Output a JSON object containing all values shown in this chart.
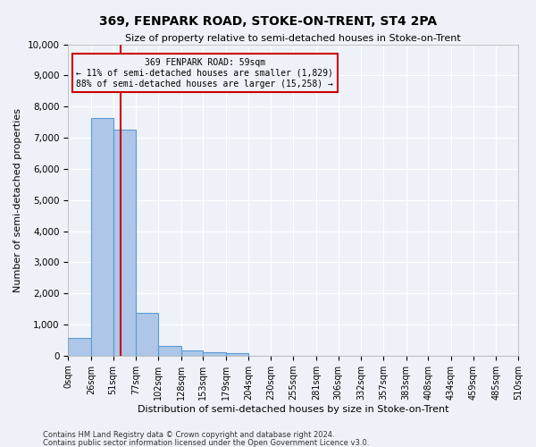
{
  "title": "369, FENPARK ROAD, STOKE-ON-TRENT, ST4 2PA",
  "subtitle": "Size of property relative to semi-detached houses in Stoke-on-Trent",
  "xlabel": "Distribution of semi-detached houses by size in Stoke-on-Trent",
  "ylabel": "Number of semi-detached properties",
  "footer1": "Contains HM Land Registry data © Crown copyright and database right 2024.",
  "footer2": "Contains public sector information licensed under the Open Government Licence v3.0.",
  "annotation_title": "369 FENPARK ROAD: 59sqm",
  "annotation_line1": "← 11% of semi-detached houses are smaller (1,829)",
  "annotation_line2": "88% of semi-detached houses are larger (15,258) →",
  "property_size": 59,
  "bin_edges": [
    0,
    26,
    51,
    77,
    102,
    128,
    153,
    179,
    204,
    230,
    255,
    281,
    306,
    332,
    357,
    383,
    408,
    434,
    459,
    485,
    510
  ],
  "bar_heights": [
    570,
    7630,
    7270,
    1360,
    310,
    160,
    110,
    80,
    0,
    0,
    0,
    0,
    0,
    0,
    0,
    0,
    0,
    0,
    0,
    0
  ],
  "bar_color": "#aec6e8",
  "bar_edge_color": "#5b9bd5",
  "vline_color": "#cc0000",
  "vline_x": 59,
  "annotation_box_color": "#cc0000",
  "background_color": "#eef2f8",
  "ylim": [
    0,
    10000
  ],
  "xlim": [
    0,
    510
  ],
  "grid_color": "#ffffff",
  "title_fontsize": 10,
  "subtitle_fontsize": 8,
  "tick_label_size": 7,
  "ylabel_fontsize": 8,
  "xlabel_fontsize": 8,
  "annot_fontsize": 7,
  "footer_fontsize": 6
}
